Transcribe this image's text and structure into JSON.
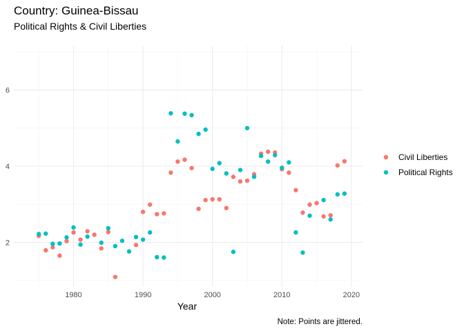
{
  "chart_data": {
    "type": "scatter",
    "title": "Country: Guinea-Bissau",
    "subtitle": "Political Rights & Civil Liberties",
    "xlabel": "Year",
    "ylabel": "",
    "caption": "Note: Points are jittered.",
    "xlim": [
      1971.4,
      2021.6
    ],
    "ylim": [
      0.83,
      7.17
    ],
    "x_ticks": [
      1980,
      1990,
      2000,
      2010,
      2020
    ],
    "y_ticks": [
      2,
      4,
      6
    ],
    "grid": true,
    "legend_position": "right",
    "series": [
      {
        "name": "Civil Liberties",
        "color": "#F8766D",
        "points": [
          [
            1975,
            2.17
          ],
          [
            1976,
            1.79
          ],
          [
            1977,
            1.87
          ],
          [
            1978,
            1.65
          ],
          [
            1979,
            2.03
          ],
          [
            1980,
            2.26
          ],
          [
            1981,
            2.07
          ],
          [
            1982,
            2.29
          ],
          [
            1983,
            2.2
          ],
          [
            1984,
            1.84
          ],
          [
            1985,
            2.27
          ],
          [
            1986,
            1.09
          ],
          [
            1989,
            1.93
          ],
          [
            1990,
            2.8
          ],
          [
            1991,
            2.99
          ],
          [
            1992,
            2.74
          ],
          [
            1993,
            2.76
          ],
          [
            1994,
            3.83
          ],
          [
            1995,
            4.12
          ],
          [
            1996,
            4.17
          ],
          [
            1997,
            3.95
          ],
          [
            1998,
            2.88
          ],
          [
            1999,
            3.11
          ],
          [
            2000,
            3.13
          ],
          [
            2001,
            3.13
          ],
          [
            2002,
            2.9
          ],
          [
            2003,
            3.72
          ],
          [
            2004,
            3.6
          ],
          [
            2005,
            3.62
          ],
          [
            2006,
            3.79
          ],
          [
            2007,
            4.33
          ],
          [
            2008,
            4.38
          ],
          [
            2009,
            4.36
          ],
          [
            2010,
            3.92
          ],
          [
            2011,
            3.83
          ],
          [
            2012,
            3.37
          ],
          [
            2013,
            2.78
          ],
          [
            2014,
            2.99
          ],
          [
            2015,
            3.03
          ],
          [
            2016,
            2.68
          ],
          [
            2017,
            2.71
          ],
          [
            2018,
            4.02
          ],
          [
            2019,
            4.13
          ]
        ]
      },
      {
        "name": "Political Rights",
        "color": "#00BFC4",
        "points": [
          [
            1975,
            2.22
          ],
          [
            1976,
            2.23
          ],
          [
            1977,
            1.96
          ],
          [
            1978,
            1.97
          ],
          [
            1979,
            2.13
          ],
          [
            1980,
            2.39
          ],
          [
            1981,
            1.94
          ],
          [
            1982,
            2.15
          ],
          [
            1984,
            1.99
          ],
          [
            1985,
            2.37
          ],
          [
            1986,
            1.9
          ],
          [
            1987,
            2.04
          ],
          [
            1988,
            1.76
          ],
          [
            1989,
            2.14
          ],
          [
            1990,
            2.07
          ],
          [
            1991,
            2.26
          ],
          [
            1992,
            1.61
          ],
          [
            1993,
            1.6
          ],
          [
            1994,
            5.39
          ],
          [
            1995,
            4.65
          ],
          [
            1996,
            5.38
          ],
          [
            1997,
            5.34
          ],
          [
            1998,
            4.85
          ],
          [
            1999,
            4.96
          ],
          [
            2000,
            3.93
          ],
          [
            2001,
            4.08
          ],
          [
            2002,
            3.81
          ],
          [
            2003,
            1.75
          ],
          [
            2004,
            3.9
          ],
          [
            2005,
            5.0
          ],
          [
            2006,
            3.72
          ],
          [
            2007,
            4.27
          ],
          [
            2008,
            4.12
          ],
          [
            2009,
            4.29
          ],
          [
            2010,
            3.96
          ],
          [
            2011,
            4.1
          ],
          [
            2012,
            2.26
          ],
          [
            2013,
            1.73
          ],
          [
            2014,
            2.7
          ],
          [
            2016,
            3.11
          ],
          [
            2017,
            2.6
          ],
          [
            2018,
            3.26
          ],
          [
            2019,
            3.28
          ]
        ]
      }
    ]
  }
}
